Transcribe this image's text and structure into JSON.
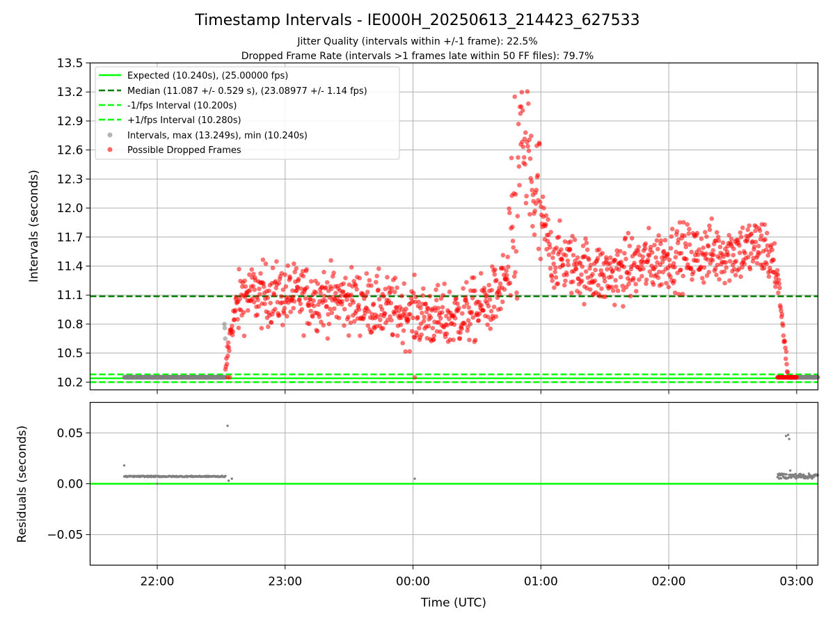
{
  "title": "Timestamp Intervals - IE000H_20250613_214423_627533",
  "subtitle_lines": [
    "Jitter Quality (intervals within +/-1 frame): 22.5%",
    "Dropped Frame Rate (intervals >1 frames late within 50 FF files): 79.7%"
  ],
  "colors": {
    "expected": "#00ff00",
    "median": "#008000",
    "fps_bounds": "#00ff00",
    "intervals": "#808080",
    "dropped": "#ff0000",
    "residuals": "#808080",
    "grid": "#b0b0b0"
  },
  "chart_data": [
    {
      "type": "scatter",
      "panel": "top",
      "ylabel": "Intervals (seconds)",
      "xlabel": "",
      "ylim": [
        10.12,
        13.5
      ],
      "yticks": [
        "10.2",
        "10.5",
        "10.8",
        "11.1",
        "11.4",
        "11.7",
        "12.0",
        "12.3",
        "12.6",
        "12.9",
        "13.2",
        "13.5"
      ],
      "xticks": [
        "22:00",
        "23:00",
        "00:00",
        "01:00",
        "02:00",
        "03:00"
      ],
      "xlim_minutes_since_22_00": [
        -31.5,
        310
      ],
      "grid": true,
      "legend_position": "upper-left",
      "hlines": [
        {
          "name": "Expected (10.240s), (25.00000 fps)",
          "y": 10.24,
          "style": "solid",
          "color": "#00ff00"
        },
        {
          "name": "Median (11.087 +/- 0.529 s), (23.08977 +/- 1.14 fps)",
          "y": 11.087,
          "style": "dashed",
          "color": "#008000"
        },
        {
          "name": "-1/fps Interval (10.200s)",
          "y": 10.2,
          "style": "dashed",
          "color": "#00ff00"
        },
        {
          "name": "+1/fps Interval (10.280s)",
          "y": 10.28,
          "style": "dashed",
          "color": "#00ff00"
        }
      ],
      "series": [
        {
          "name": "Intervals, max (13.249s), min (10.240s)",
          "color": "#808080",
          "max": 13.249,
          "min": 10.24
        },
        {
          "name": "Possible Dropped Frames",
          "color": "#ff0000"
        }
      ],
      "trend_profile": {
        "description_free": true,
        "x_minutes": [
          -15.5,
          32,
          33,
          35,
          40,
          60,
          90,
          120,
          135,
          150,
          160,
          168,
          170,
          175,
          185,
          210,
          240,
          270,
          285,
          291,
          294,
          296,
          306,
          310
        ],
        "y_seconds": [
          10.25,
          10.25,
          10.5,
          10.8,
          11.1,
          11.1,
          11.05,
          10.9,
          10.85,
          10.95,
          11.1,
          11.5,
          12.5,
          12.3,
          11.5,
          11.3,
          11.5,
          11.55,
          11.6,
          11.3,
          10.7,
          10.25,
          10.25,
          10.25
        ]
      }
    },
    {
      "type": "scatter",
      "panel": "bottom",
      "ylabel": "Residuals (seconds)",
      "xlabel": "Time (UTC)",
      "ylim": [
        -0.08,
        0.08
      ],
      "yticks": [
        "−0.05",
        "0.00",
        "0.05"
      ],
      "grid": true,
      "hlines": [
        {
          "y": 0.0,
          "style": "solid",
          "color": "#00ff00"
        }
      ],
      "series": [
        {
          "name": "",
          "color": "#808080",
          "segments": [
            {
              "x_start": -15.5,
              "x_end": 32,
              "y": 0.0072
            },
            {
              "x_start": 291,
              "x_end": 310,
              "y": 0.0075
            }
          ],
          "points": [
            {
              "x": -15.5,
              "y": 0.018
            },
            {
              "x": 33,
              "y": 0.057
            },
            {
              "x": 33.5,
              "y": 0.003
            },
            {
              "x": 35,
              "y": 0.005
            },
            {
              "x": 0.0,
              "y": 0.0
            },
            {
              "x": 120.8,
              "y": 0.005
            },
            {
              "x": 295,
              "y": 0.047
            },
            {
              "x": 296,
              "y": 0.048
            },
            {
              "x": 296.5,
              "y": 0.044
            },
            {
              "x": 297,
              "y": 0.013
            }
          ]
        }
      ]
    }
  ]
}
